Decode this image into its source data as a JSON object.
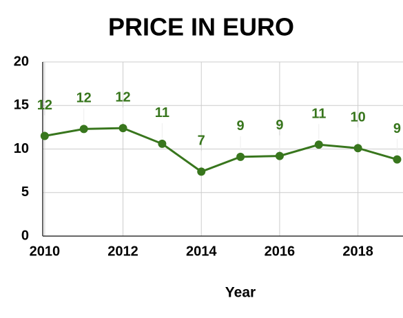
{
  "chart_data": {
    "type": "line",
    "title": "PRICE IN EURO",
    "x_label": "Year",
    "x": [
      2010,
      2011,
      2012,
      2013,
      2014,
      2015,
      2016,
      2017,
      2018,
      2019
    ],
    "series": [
      {
        "color": "#38761d",
        "values": [
          11.5,
          12.3,
          12.4,
          10.6,
          7.4,
          9.1,
          9.2,
          10.5,
          10.1,
          8.8
        ],
        "value_labels": [
          "12",
          "12",
          "12",
          "11",
          "7",
          "9",
          "9",
          "11",
          "10",
          "9"
        ]
      }
    ],
    "xlim": [
      2009.95,
      2019.15
    ],
    "xticks": [
      2010,
      2012,
      2014,
      2016,
      2018
    ],
    "ylim": [
      0,
      20
    ],
    "yticks": [
      0,
      5,
      10,
      15,
      20
    ],
    "grid": true
  }
}
